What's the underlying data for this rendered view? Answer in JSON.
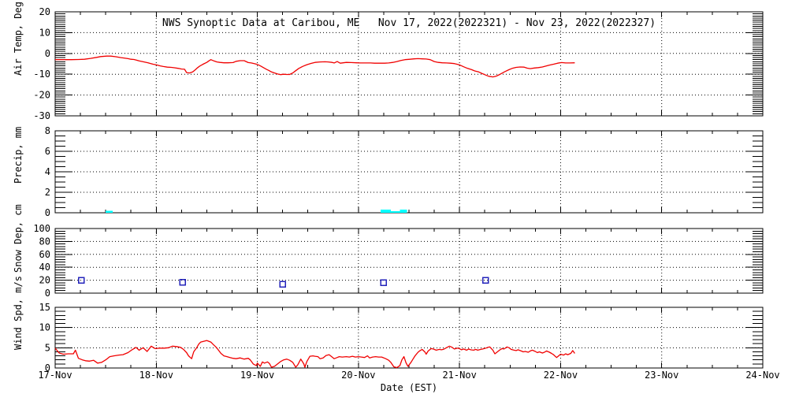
{
  "title": "NWS Synoptic Data at Caribou, ME   Nov 17, 2022(2022321) - Nov 23, 2022(2022327)",
  "xlabel": "Date (EST)",
  "station": "Caribou, ME",
  "period": "Nov 17, 2022(2022321) - Nov 23, 2022(2022327)",
  "colors": {
    "series_red": "#f00000",
    "precip_cyan": "#00ffff",
    "snow_blue": "#2323bb",
    "axis_black": "#000000",
    "background": "#ffffff"
  },
  "x_axis": {
    "tick_labels": [
      "17-Nov",
      "18-Nov",
      "19-Nov",
      "20-Nov",
      "21-Nov",
      "22-Nov",
      "23-Nov",
      "24-Nov"
    ],
    "range_days": [
      0,
      7
    ],
    "minor_step_days": 0.25,
    "grid": "dotted vertical line at each day"
  },
  "chart_data": [
    {
      "type": "line",
      "name": "air-temp",
      "ylabel": "Air Temp, Deg C",
      "ylim": [
        -30,
        20
      ],
      "yticks": [
        20,
        10,
        0,
        -10,
        -20,
        -30
      ],
      "minor_step": 1,
      "grid": "dotted horizontal at 10, 0, -10, -20",
      "series_color": "series_red",
      "points": [
        [
          0.0,
          -3.0
        ],
        [
          0.08,
          -3.0
        ],
        [
          0.16,
          -3.0
        ],
        [
          0.23,
          -2.9
        ],
        [
          0.29,
          -2.8
        ],
        [
          0.35,
          -2.4
        ],
        [
          0.41,
          -1.9
        ],
        [
          0.45,
          -1.5
        ],
        [
          0.51,
          -1.3
        ],
        [
          0.55,
          -1.3
        ],
        [
          0.6,
          -1.6
        ],
        [
          0.65,
          -2.0
        ],
        [
          0.68,
          -2.2
        ],
        [
          0.72,
          -2.5
        ],
        [
          0.75,
          -2.8
        ],
        [
          0.78,
          -2.9
        ],
        [
          0.81,
          -3.3
        ],
        [
          0.83,
          -3.6
        ],
        [
          0.88,
          -4.1
        ],
        [
          0.92,
          -4.5
        ],
        [
          0.94,
          -4.8
        ],
        [
          0.97,
          -5.2
        ],
        [
          1.0,
          -5.5
        ],
        [
          1.04,
          -6.0
        ],
        [
          1.07,
          -6.3
        ],
        [
          1.11,
          -6.6
        ],
        [
          1.15,
          -6.7
        ],
        [
          1.18,
          -6.9
        ],
        [
          1.22,
          -7.2
        ],
        [
          1.25,
          -7.5
        ],
        [
          1.28,
          -7.6
        ],
        [
          1.3,
          -9.2
        ],
        [
          1.33,
          -9.4
        ],
        [
          1.36,
          -8.9
        ],
        [
          1.38,
          -8.1
        ],
        [
          1.41,
          -6.8
        ],
        [
          1.43,
          -6.1
        ],
        [
          1.47,
          -5.0
        ],
        [
          1.5,
          -4.3
        ],
        [
          1.52,
          -3.6
        ],
        [
          1.54,
          -3.0
        ],
        [
          1.57,
          -3.6
        ],
        [
          1.6,
          -4.1
        ],
        [
          1.63,
          -4.3
        ],
        [
          1.67,
          -4.5
        ],
        [
          1.71,
          -4.5
        ],
        [
          1.76,
          -4.4
        ],
        [
          1.79,
          -3.8
        ],
        [
          1.83,
          -3.5
        ],
        [
          1.87,
          -3.5
        ],
        [
          1.91,
          -4.4
        ],
        [
          1.94,
          -4.6
        ],
        [
          1.97,
          -4.9
        ],
        [
          2.0,
          -5.3
        ],
        [
          2.03,
          -6.0
        ],
        [
          2.06,
          -6.8
        ],
        [
          2.09,
          -7.6
        ],
        [
          2.11,
          -8.1
        ],
        [
          2.14,
          -8.9
        ],
        [
          2.17,
          -9.4
        ],
        [
          2.2,
          -9.9
        ],
        [
          2.23,
          -10.2
        ],
        [
          2.26,
          -10.0
        ],
        [
          2.29,
          -10.1
        ],
        [
          2.32,
          -10.1
        ],
        [
          2.35,
          -9.4
        ],
        [
          2.38,
          -8.3
        ],
        [
          2.41,
          -7.2
        ],
        [
          2.45,
          -6.2
        ],
        [
          2.49,
          -5.4
        ],
        [
          2.53,
          -4.8
        ],
        [
          2.57,
          -4.3
        ],
        [
          2.62,
          -4.1
        ],
        [
          2.67,
          -4.0
        ],
        [
          2.7,
          -4.1
        ],
        [
          2.74,
          -4.3
        ],
        [
          2.76,
          -4.6
        ],
        [
          2.79,
          -3.9
        ],
        [
          2.82,
          -4.7
        ],
        [
          2.85,
          -4.5
        ],
        [
          2.88,
          -4.3
        ],
        [
          2.93,
          -4.4
        ],
        [
          2.98,
          -4.5
        ],
        [
          3.02,
          -4.6
        ],
        [
          3.07,
          -4.6
        ],
        [
          3.12,
          -4.6
        ],
        [
          3.16,
          -4.7
        ],
        [
          3.21,
          -4.7
        ],
        [
          3.26,
          -4.7
        ],
        [
          3.3,
          -4.6
        ],
        [
          3.34,
          -4.3
        ],
        [
          3.38,
          -3.9
        ],
        [
          3.42,
          -3.4
        ],
        [
          3.46,
          -3.0
        ],
        [
          3.51,
          -2.8
        ],
        [
          3.55,
          -2.6
        ],
        [
          3.59,
          -2.5
        ],
        [
          3.63,
          -2.6
        ],
        [
          3.67,
          -2.7
        ],
        [
          3.71,
          -3.0
        ],
        [
          3.75,
          -3.9
        ],
        [
          3.79,
          -4.3
        ],
        [
          3.83,
          -4.5
        ],
        [
          3.87,
          -4.6
        ],
        [
          3.91,
          -4.7
        ],
        [
          3.95,
          -4.9
        ],
        [
          4.0,
          -5.5
        ],
        [
          4.04,
          -6.4
        ],
        [
          4.08,
          -7.2
        ],
        [
          4.12,
          -7.8
        ],
        [
          4.15,
          -8.4
        ],
        [
          4.19,
          -8.9
        ],
        [
          4.22,
          -9.6
        ],
        [
          4.26,
          -10.4
        ],
        [
          4.29,
          -11.0
        ],
        [
          4.33,
          -11.3
        ],
        [
          4.36,
          -11.0
        ],
        [
          4.39,
          -10.3
        ],
        [
          4.42,
          -9.5
        ],
        [
          4.45,
          -8.7
        ],
        [
          4.49,
          -7.8
        ],
        [
          4.52,
          -7.2
        ],
        [
          4.56,
          -6.7
        ],
        [
          4.6,
          -6.5
        ],
        [
          4.64,
          -6.6
        ],
        [
          4.67,
          -7.1
        ],
        [
          4.7,
          -7.3
        ],
        [
          4.74,
          -7.0
        ],
        [
          4.78,
          -6.8
        ],
        [
          4.82,
          -6.5
        ],
        [
          4.86,
          -6.0
        ],
        [
          4.89,
          -5.6
        ],
        [
          4.93,
          -5.2
        ],
        [
          4.97,
          -4.7
        ],
        [
          5.01,
          -4.4
        ],
        [
          5.05,
          -4.6
        ],
        [
          5.09,
          -4.6
        ],
        [
          5.14,
          -4.5
        ]
      ]
    },
    {
      "type": "bar",
      "name": "precip",
      "ylabel": "Precip, mm",
      "ylim": [
        0,
        8
      ],
      "yticks": [
        8,
        6,
        4,
        2,
        0
      ],
      "minor_step": 0.5,
      "grid": "dotted horizontal at 2, 4, 6",
      "series_color": "precip_cyan",
      "bars": [
        {
          "day_start": 0.5,
          "day_end": 0.57,
          "mm": 0.2
        },
        {
          "day_start": 3.22,
          "day_end": 3.32,
          "mm": 0.3
        },
        {
          "day_start": 3.32,
          "day_end": 3.41,
          "mm": 0.15
        },
        {
          "day_start": 3.41,
          "day_end": 3.48,
          "mm": 0.3
        }
      ]
    },
    {
      "type": "scatter",
      "name": "snow-depth",
      "ylabel": "Snow Dep, cm",
      "ylim": [
        0,
        100
      ],
      "yticks": [
        100,
        80,
        60,
        40,
        20,
        0
      ],
      "minor_step": 4,
      "grid": "dotted horizontal at 20, 40, 60, 80",
      "marker": "open-square",
      "series_color": "snow_blue",
      "points": [
        [
          0.26,
          20
        ],
        [
          1.26,
          17
        ],
        [
          2.25,
          14
        ],
        [
          3.25,
          16
        ],
        [
          4.26,
          20
        ]
      ]
    },
    {
      "type": "line",
      "name": "wind-speed",
      "ylabel": "Wind Spd, m/s",
      "ylim": [
        0,
        15
      ],
      "yticks": [
        15,
        10,
        5,
        0
      ],
      "minor_step": 1,
      "grid": "dotted horizontal at 5, 10",
      "series_color": "series_red",
      "points": [
        [
          0.0,
          4.9
        ],
        [
          0.04,
          3.7
        ],
        [
          0.08,
          3.4
        ],
        [
          0.13,
          3.5
        ],
        [
          0.18,
          3.5
        ],
        [
          0.2,
          4.4
        ],
        [
          0.23,
          2.4
        ],
        [
          0.27,
          2.0
        ],
        [
          0.3,
          1.8
        ],
        [
          0.34,
          1.7
        ],
        [
          0.38,
          1.9
        ],
        [
          0.42,
          1.2
        ],
        [
          0.46,
          1.4
        ],
        [
          0.5,
          2.0
        ],
        [
          0.54,
          2.8
        ],
        [
          0.58,
          3.0
        ],
        [
          0.63,
          3.2
        ],
        [
          0.67,
          3.3
        ],
        [
          0.72,
          3.8
        ],
        [
          0.76,
          4.5
        ],
        [
          0.8,
          5.1
        ],
        [
          0.83,
          4.4
        ],
        [
          0.87,
          5.0
        ],
        [
          0.91,
          4.1
        ],
        [
          0.95,
          5.4
        ],
        [
          0.99,
          4.8
        ],
        [
          1.03,
          4.9
        ],
        [
          1.08,
          4.9
        ],
        [
          1.12,
          5.0
        ],
        [
          1.16,
          5.4
        ],
        [
          1.2,
          5.3
        ],
        [
          1.24,
          5.1
        ],
        [
          1.27,
          4.6
        ],
        [
          1.3,
          3.8
        ],
        [
          1.32,
          3.0
        ],
        [
          1.35,
          2.3
        ],
        [
          1.37,
          4.0
        ],
        [
          1.4,
          5.0
        ],
        [
          1.42,
          5.9
        ],
        [
          1.44,
          6.4
        ],
        [
          1.47,
          6.6
        ],
        [
          1.5,
          6.8
        ],
        [
          1.54,
          6.4
        ],
        [
          1.56,
          5.9
        ],
        [
          1.59,
          5.2
        ],
        [
          1.61,
          4.6
        ],
        [
          1.64,
          3.6
        ],
        [
          1.67,
          3.0
        ],
        [
          1.7,
          2.8
        ],
        [
          1.73,
          2.6
        ],
        [
          1.76,
          2.4
        ],
        [
          1.79,
          2.3
        ],
        [
          1.83,
          2.5
        ],
        [
          1.87,
          2.2
        ],
        [
          1.91,
          2.4
        ],
        [
          1.93,
          2.0
        ],
        [
          1.96,
          1.0
        ],
        [
          1.99,
          0.6
        ],
        [
          2.0,
          1.2
        ],
        [
          2.03,
          0.4
        ],
        [
          2.05,
          1.5
        ],
        [
          2.07,
          1.2
        ],
        [
          2.1,
          1.5
        ],
        [
          2.12,
          1.1
        ],
        [
          2.14,
          0.2
        ],
        [
          2.17,
          0.4
        ],
        [
          2.2,
          1.0
        ],
        [
          2.23,
          1.6
        ],
        [
          2.26,
          2.0
        ],
        [
          2.29,
          2.2
        ],
        [
          2.32,
          1.9
        ],
        [
          2.35,
          1.4
        ],
        [
          2.38,
          0.2
        ],
        [
          2.4,
          0.8
        ],
        [
          2.43,
          2.2
        ],
        [
          2.46,
          1.0
        ],
        [
          2.47,
          0.2
        ],
        [
          2.49,
          1.6
        ],
        [
          2.52,
          2.9
        ],
        [
          2.55,
          3.0
        ],
        [
          2.57,
          2.9
        ],
        [
          2.6,
          2.8
        ],
        [
          2.62,
          2.3
        ],
        [
          2.65,
          2.5
        ],
        [
          2.68,
          3.1
        ],
        [
          2.71,
          3.3
        ],
        [
          2.74,
          2.7
        ],
        [
          2.76,
          2.3
        ],
        [
          2.79,
          2.6
        ],
        [
          2.81,
          2.8
        ],
        [
          2.84,
          2.7
        ],
        [
          2.88,
          2.8
        ],
        [
          2.91,
          2.7
        ],
        [
          2.94,
          2.9
        ],
        [
          2.97,
          2.7
        ],
        [
          3.0,
          2.8
        ],
        [
          3.03,
          2.7
        ],
        [
          3.06,
          2.6
        ],
        [
          3.09,
          3.0
        ],
        [
          3.11,
          2.5
        ],
        [
          3.14,
          2.7
        ],
        [
          3.17,
          2.8
        ],
        [
          3.2,
          2.7
        ],
        [
          3.23,
          2.7
        ],
        [
          3.27,
          2.3
        ],
        [
          3.3,
          1.9
        ],
        [
          3.32,
          1.4
        ],
        [
          3.35,
          0.3
        ],
        [
          3.38,
          0.1
        ],
        [
          3.41,
          0.6
        ],
        [
          3.43,
          2.0
        ],
        [
          3.45,
          2.8
        ],
        [
          3.47,
          1.3
        ],
        [
          3.49,
          0.4
        ],
        [
          3.52,
          1.4
        ],
        [
          3.54,
          2.2
        ],
        [
          3.56,
          3.0
        ],
        [
          3.59,
          3.9
        ],
        [
          3.61,
          4.3
        ],
        [
          3.63,
          4.6
        ],
        [
          3.66,
          3.9
        ],
        [
          3.67,
          3.4
        ],
        [
          3.69,
          4.2
        ],
        [
          3.72,
          4.8
        ],
        [
          3.74,
          4.7
        ],
        [
          3.77,
          4.4
        ],
        [
          3.8,
          4.6
        ],
        [
          3.82,
          4.5
        ],
        [
          3.84,
          4.6
        ],
        [
          3.87,
          5.0
        ],
        [
          3.9,
          5.4
        ],
        [
          3.92,
          5.2
        ],
        [
          3.95,
          4.7
        ],
        [
          3.98,
          4.9
        ],
        [
          4.0,
          4.8
        ],
        [
          4.02,
          4.5
        ],
        [
          4.04,
          4.7
        ],
        [
          4.07,
          4.4
        ],
        [
          4.09,
          4.7
        ],
        [
          4.11,
          4.5
        ],
        [
          4.14,
          4.4
        ],
        [
          4.16,
          4.6
        ],
        [
          4.18,
          4.4
        ],
        [
          4.21,
          4.6
        ],
        [
          4.23,
          4.7
        ],
        [
          4.26,
          4.9
        ],
        [
          4.28,
          5.1
        ],
        [
          4.3,
          5.2
        ],
        [
          4.33,
          4.4
        ],
        [
          4.35,
          3.5
        ],
        [
          4.37,
          3.9
        ],
        [
          4.4,
          4.5
        ],
        [
          4.42,
          4.8
        ],
        [
          4.44,
          4.7
        ],
        [
          4.47,
          5.2
        ],
        [
          4.49,
          5.0
        ],
        [
          4.51,
          4.6
        ],
        [
          4.54,
          4.4
        ],
        [
          4.56,
          4.3
        ],
        [
          4.58,
          4.5
        ],
        [
          4.61,
          4.2
        ],
        [
          4.63,
          4.0
        ],
        [
          4.65,
          4.1
        ],
        [
          4.68,
          3.9
        ],
        [
          4.7,
          4.2
        ],
        [
          4.72,
          4.4
        ],
        [
          4.75,
          4.1
        ],
        [
          4.77,
          3.8
        ],
        [
          4.79,
          4.0
        ],
        [
          4.82,
          3.7
        ],
        [
          4.84,
          3.9
        ],
        [
          4.86,
          4.2
        ],
        [
          4.89,
          3.9
        ],
        [
          4.91,
          3.6
        ],
        [
          4.93,
          3.3
        ],
        [
          4.96,
          2.6
        ],
        [
          4.98,
          3.0
        ],
        [
          5.0,
          3.4
        ],
        [
          5.03,
          3.2
        ],
        [
          5.05,
          3.5
        ],
        [
          5.07,
          3.3
        ],
        [
          5.1,
          3.6
        ],
        [
          5.12,
          4.3
        ],
        [
          5.14,
          3.6
        ]
      ]
    }
  ]
}
